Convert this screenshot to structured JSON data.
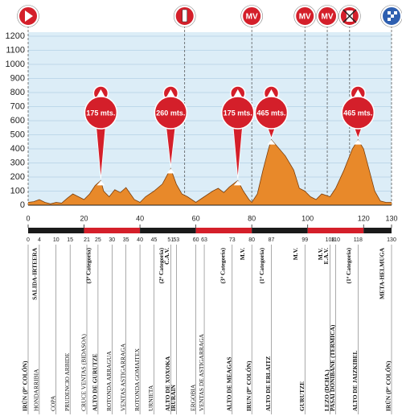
{
  "chart_data": {
    "type": "area",
    "color": "#e8892a",
    "xlim": [
      0,
      130
    ],
    "ylim": [
      0,
      1200
    ],
    "xticks": [
      0,
      20,
      40,
      60,
      80,
      100,
      120,
      130
    ],
    "yticks": [
      0,
      100,
      200,
      300,
      400,
      500,
      600,
      700,
      800,
      900,
      1000,
      1100,
      1200
    ],
    "grid": true,
    "x": [
      0,
      2,
      4,
      6,
      8,
      10,
      12,
      14,
      16,
      18,
      20,
      22,
      24,
      26,
      27,
      29,
      31,
      33,
      35,
      38,
      40,
      42,
      45,
      48,
      51,
      53,
      55,
      57,
      60,
      63,
      66,
      68,
      70,
      72,
      75,
      77,
      79,
      80,
      82,
      84,
      86,
      87,
      89,
      92,
      95,
      97,
      99,
      101,
      103,
      105,
      108,
      110,
      113,
      116,
      118,
      120,
      122,
      124,
      126,
      128,
      130
    ],
    "values": [
      20,
      25,
      40,
      20,
      10,
      20,
      15,
      50,
      80,
      60,
      40,
      80,
      140,
      175,
      100,
      60,
      110,
      90,
      125,
      40,
      20,
      60,
      100,
      150,
      260,
      150,
      80,
      60,
      20,
      60,
      100,
      120,
      90,
      130,
      175,
      100,
      40,
      20,
      80,
      250,
      400,
      465,
      420,
      350,
      250,
      120,
      100,
      60,
      40,
      80,
      60,
      120,
      250,
      400,
      465,
      400,
      250,
      100,
      30,
      20,
      20
    ],
    "annotations": [
      {
        "x": 26,
        "value": 175,
        "label": "175 mts."
      },
      {
        "x": 51,
        "value": 260,
        "label": "260 mts."
      },
      {
        "x": 75,
        "value": 175,
        "label": "175 mts."
      },
      {
        "x": 87,
        "value": 465,
        "label": "465 mts."
      },
      {
        "x": 118,
        "value": 465,
        "label": "465 mts."
      }
    ],
    "icons": [
      {
        "km": 0,
        "icon": "start"
      },
      {
        "km": 56,
        "icon": "info"
      },
      {
        "km": 80,
        "label": "MV"
      },
      {
        "km": 99,
        "label": "MV"
      },
      {
        "km": 107,
        "label": "MV"
      },
      {
        "km": 115,
        "icon": "no-food"
      },
      {
        "km": 130,
        "icon": "finish"
      }
    ],
    "places": [
      {
        "km": 0,
        "name": "IRÚN (Pº COLÓN)",
        "note": "SALIDA-IRTEERA",
        "bold": true
      },
      {
        "km": 4,
        "name": "HONDARRIBIA"
      },
      {
        "km": 10,
        "name": "COPA"
      },
      {
        "km": 15,
        "name": "PRUDENCIO ARBIDE"
      },
      {
        "km": 21,
        "name": "CRUCE VENTAS (BIDASOA)"
      },
      {
        "km": 25,
        "name": "ALTO DE GURUTZE",
        "note": "(3ª Categoría)",
        "bold": true
      },
      {
        "km": 30,
        "name": "ROTONDA ARRAGUA"
      },
      {
        "km": 35,
        "name": "VENTAS ASTIGARRAGA"
      },
      {
        "km": 40,
        "name": "ROTONDA GOMAITEX"
      },
      {
        "km": 45,
        "name": "URNIETA"
      },
      {
        "km": 51,
        "name": "ALTO DE XOXOKA",
        "note": "(2ª Categoría)",
        "bold": true
      },
      {
        "km": 53,
        "name": "IRURAIN",
        "note": "C.A.V.",
        "bold": true
      },
      {
        "km": 60,
        "name": "ERGOBIA"
      },
      {
        "km": 63,
        "name": "VENTAS DE ASTIGARRAGA"
      },
      {
        "km": 73,
        "name": "ALTO DE MEAGAS",
        "note": "(3ª Categoría)",
        "bold": true
      },
      {
        "km": 80,
        "name": "IRUN (Pº COLÓN)",
        "note": "M.V.",
        "bold": true
      },
      {
        "km": 87,
        "name": "ALTO DE ERLAITZ",
        "note": "(1ª Categoría)",
        "bold": true
      },
      {
        "km": 99,
        "name": "GURUTZE",
        "note": "M.V.",
        "bold": true
      },
      {
        "km": 108,
        "name": "LEZO (DCHA.)",
        "note": "M.V.",
        "bold": true
      },
      {
        "km": 110,
        "name": "PASAI DONIBANE (TERMICA)",
        "note": "E.A.V.",
        "bold": true
      },
      {
        "km": 118,
        "name": "ALTO DE JAIZKIBEL",
        "note": "(1ª Categoría)",
        "bold": true
      },
      {
        "km": 130,
        "name": "IRÚN (Pº COLÓN)",
        "note": "META-HELMUGA",
        "bold": true
      }
    ]
  }
}
